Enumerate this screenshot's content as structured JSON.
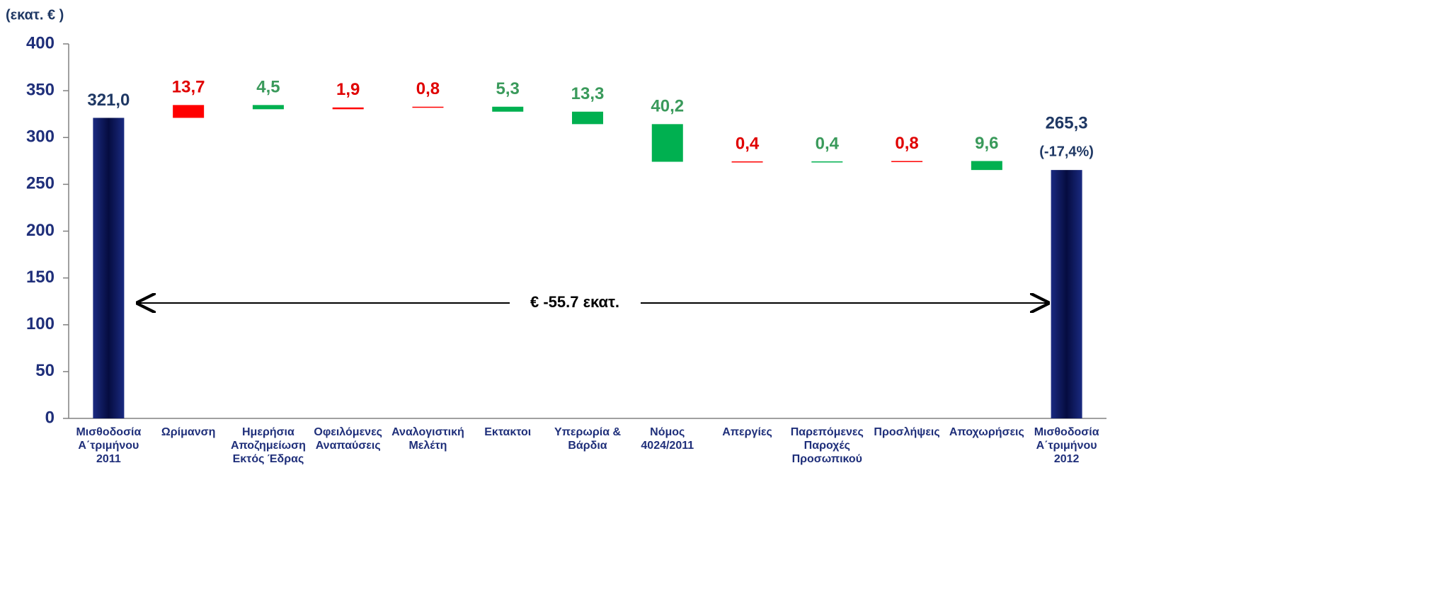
{
  "chart_data": {
    "type": "waterfall",
    "y_label": "(εκατ. € )",
    "categories": [
      "Μισθοδοσία\nΑ΄τριμήνου\n2011",
      "Ωρίμανση",
      "Ημερήσια\nΑποζημείωση\nΕκτός Έδρας",
      "Οφειλόμενες\nΑναπαύσεις",
      "Αναλογιστική\nΜελέτη",
      "Εκτακτοι",
      "Υπερωρία &\nΒάρδια",
      "Νόμος\n4024/2011",
      "Απεργίες",
      "Παρεπόμενες\nΠαροχές\nΠροσωπικού",
      "Προσλήψεις",
      "Αποχωρήσεις",
      "Μισθοδοσία\nΑ΄τριμήνου\n2012"
    ],
    "values": [
      321.0,
      13.7,
      -4.5,
      1.9,
      0.8,
      -5.3,
      -13.3,
      -40.2,
      0.4,
      -0.4,
      0.8,
      -9.6,
      265.3
    ],
    "value_labels": [
      "321,0",
      "13,7",
      "4,5",
      "1,9",
      "0,8",
      "5,3",
      "13,3",
      "40,2",
      "0,4",
      "0,4",
      "0,8",
      "9,6",
      "265,3"
    ],
    "measure": [
      "total",
      "relative",
      "relative",
      "relative",
      "relative",
      "relative",
      "relative",
      "relative",
      "relative",
      "relative",
      "relative",
      "relative",
      "total"
    ],
    "colors": {
      "total": "#0b1660",
      "increase": "#ff0000",
      "decrease": "#00b050"
    },
    "label_colors": {
      "total": "#1f3864",
      "increase": "#e00000",
      "decrease": "#3a9a5b"
    },
    "annotations": [
      "(-17,4%)",
      "€ -55.7 εκατ."
    ],
    "ylim": [
      0,
      400
    ],
    "yticks": [
      0,
      50,
      100,
      150,
      200,
      250,
      300,
      350,
      400
    ]
  }
}
